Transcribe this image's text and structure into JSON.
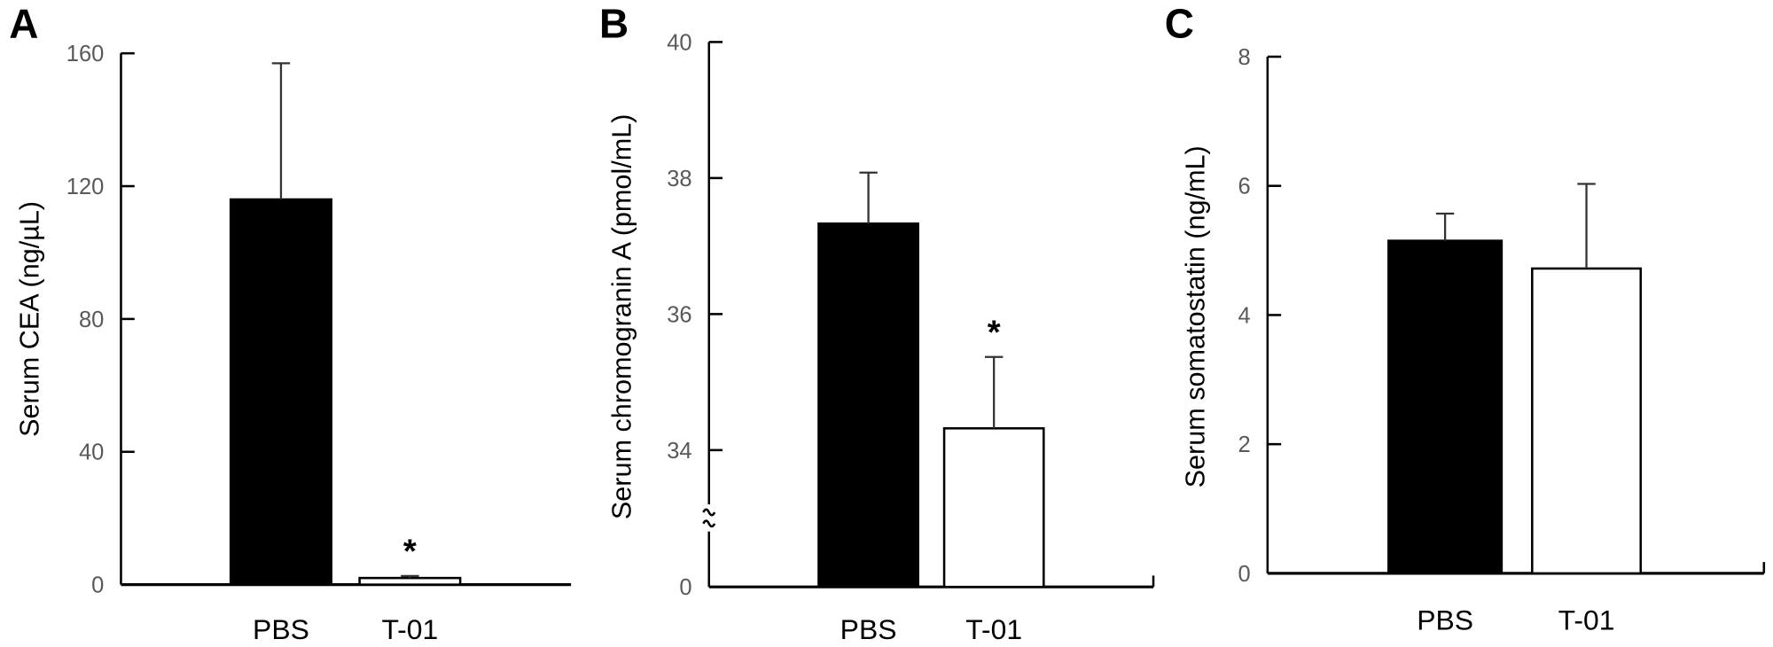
{
  "chart_data": [
    {
      "type": "bar",
      "panel_label": "A",
      "ylabel": "Serum CEA (ng/µL)",
      "xlabel": "",
      "categories": [
        "PBS",
        "T-01"
      ],
      "values": [
        116,
        2
      ],
      "error_upper": [
        157,
        2.6
      ],
      "bar_colors": [
        "#000000",
        "#ffffff"
      ],
      "significance": [
        "",
        "*"
      ],
      "ylim": [
        0,
        160
      ],
      "yticks": [
        "0",
        "40",
        "80",
        "120",
        "160"
      ],
      "grid": false
    },
    {
      "type": "bar",
      "panel_label": "B",
      "ylabel": "Serum chromogranin A (pmol/mL)",
      "xlabel": "",
      "categories": [
        "PBS",
        "T-01"
      ],
      "values": [
        37.33,
        34.32
      ],
      "error_upper": [
        38.08,
        35.37
      ],
      "bar_colors": [
        "#000000",
        "#ffffff"
      ],
      "significance": [
        "",
        "*"
      ],
      "ylim": [
        0,
        40
      ],
      "axis_break": [
        0,
        34
      ],
      "yticks": [
        "0",
        "34",
        "36",
        "38",
        "40"
      ],
      "grid": false
    },
    {
      "type": "bar",
      "panel_label": "C",
      "ylabel": "Serum somatostatin (ng/mL)",
      "xlabel": "",
      "categories": [
        "PBS",
        "T-01"
      ],
      "values": [
        5.15,
        4.72
      ],
      "error_upper": [
        5.57,
        6.03
      ],
      "bar_colors": [
        "#000000",
        "#ffffff"
      ],
      "significance": [
        "",
        ""
      ],
      "ylim": [
        0,
        8
      ],
      "yticks": [
        "0",
        "2",
        "4",
        "6",
        "8"
      ],
      "grid": false
    }
  ]
}
